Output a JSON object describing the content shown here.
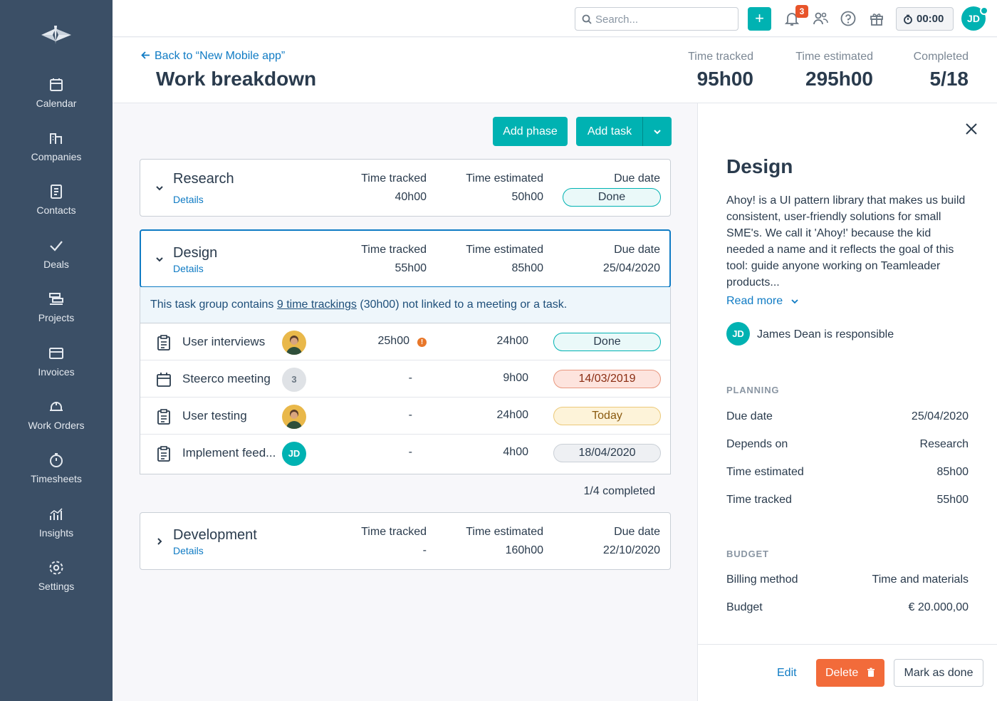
{
  "sidebar": {
    "items": [
      {
        "label": "Calendar",
        "icon": "calendar-icon"
      },
      {
        "label": "Companies",
        "icon": "companies-icon"
      },
      {
        "label": "Contacts",
        "icon": "contacts-icon"
      },
      {
        "label": "Deals",
        "icon": "check-icon"
      },
      {
        "label": "Projects",
        "icon": "projects-icon"
      },
      {
        "label": "Invoices",
        "icon": "invoice-icon"
      },
      {
        "label": "Work Orders",
        "icon": "helmet-icon"
      },
      {
        "label": "Timesheets",
        "icon": "stopwatch-icon"
      },
      {
        "label": "Insights",
        "icon": "chart-icon"
      },
      {
        "label": "Settings",
        "icon": "gear-icon"
      }
    ]
  },
  "topbar": {
    "search_placeholder": "Search...",
    "plus_label": "+",
    "notification_count": "3",
    "timer": "00:00",
    "user_initials": "JD"
  },
  "header": {
    "back_link": "Back to “New Mobile app”",
    "title": "Work breakdown",
    "stats": [
      {
        "label": "Time tracked",
        "value": "95h00"
      },
      {
        "label": "Time estimated",
        "value": "295h00"
      },
      {
        "label": "Completed",
        "value": "5/18"
      }
    ]
  },
  "actions": {
    "add_phase": "Add phase",
    "add_task": "Add task"
  },
  "columns": {
    "tracked": "Time tracked",
    "estimated": "Time estimated",
    "due": "Due date"
  },
  "phases": [
    {
      "name": "Research",
      "details": "Details",
      "tracked": "40h00",
      "estimated": "50h00",
      "due": "Done"
    },
    {
      "name": "Design",
      "details": "Details",
      "tracked": "55h00",
      "estimated": "85h00",
      "due": "25/04/2020"
    },
    {
      "name": "Development",
      "details": "Details",
      "tracked": "-",
      "estimated": "160h00",
      "due": "22/10/2020"
    }
  ],
  "notice": {
    "prefix": "This task group contains ",
    "link": "9 time trackings",
    "suffix": " (30h00) not linked to a meeting or a task."
  },
  "tasks": [
    {
      "name": "User interviews",
      "avatar": "",
      "tracked": "25h00",
      "warning": "!",
      "estimated": "24h00",
      "due": "Done",
      "status": "done"
    },
    {
      "name": "Steerco meeting",
      "avatar": "3",
      "tracked": "-",
      "estimated": "9h00",
      "due": "14/03/2019",
      "status": "overdue"
    },
    {
      "name": "User testing",
      "avatar": "",
      "tracked": "-",
      "estimated": "24h00",
      "due": "Today",
      "status": "today"
    },
    {
      "name": "Implement feed...",
      "avatar": "JD",
      "tracked": "-",
      "estimated": "4h00",
      "due": "18/04/2020",
      "status": "neutral"
    }
  ],
  "completed_text": "1/4 completed",
  "detail": {
    "title": "Design",
    "description": "Ahoy! is a UI pattern library that makes us build consistent, user-friendly solutions for small SME's. We call it 'Ahoy!' because the kid needed a name and it reflects the goal of this tool: guide anyone working on Teamleader products...",
    "read_more": "Read more",
    "responsible_initials": "JD",
    "responsible_text": "James Dean is responsible",
    "planning_heading": "PLANNING",
    "planning": [
      {
        "key": "Due date",
        "value": "25/04/2020"
      },
      {
        "key": "Depends on",
        "value": "Research"
      },
      {
        "key": "Time estimated",
        "value": "85h00"
      },
      {
        "key": "Time tracked",
        "value": "55h00"
      }
    ],
    "budget_heading": "BUDGET",
    "budget": [
      {
        "key": "Billing method",
        "value": "Time and materials"
      },
      {
        "key": "Budget",
        "value": "€ 20.000,00"
      }
    ],
    "edit": "Edit",
    "delete": "Delete",
    "mark_done": "Mark as done"
  },
  "colors": {
    "sidebar_bg": "#3b4f66",
    "accent": "#00b2b2",
    "link": "#0f7bc4",
    "danger": "#f26b3a"
  }
}
